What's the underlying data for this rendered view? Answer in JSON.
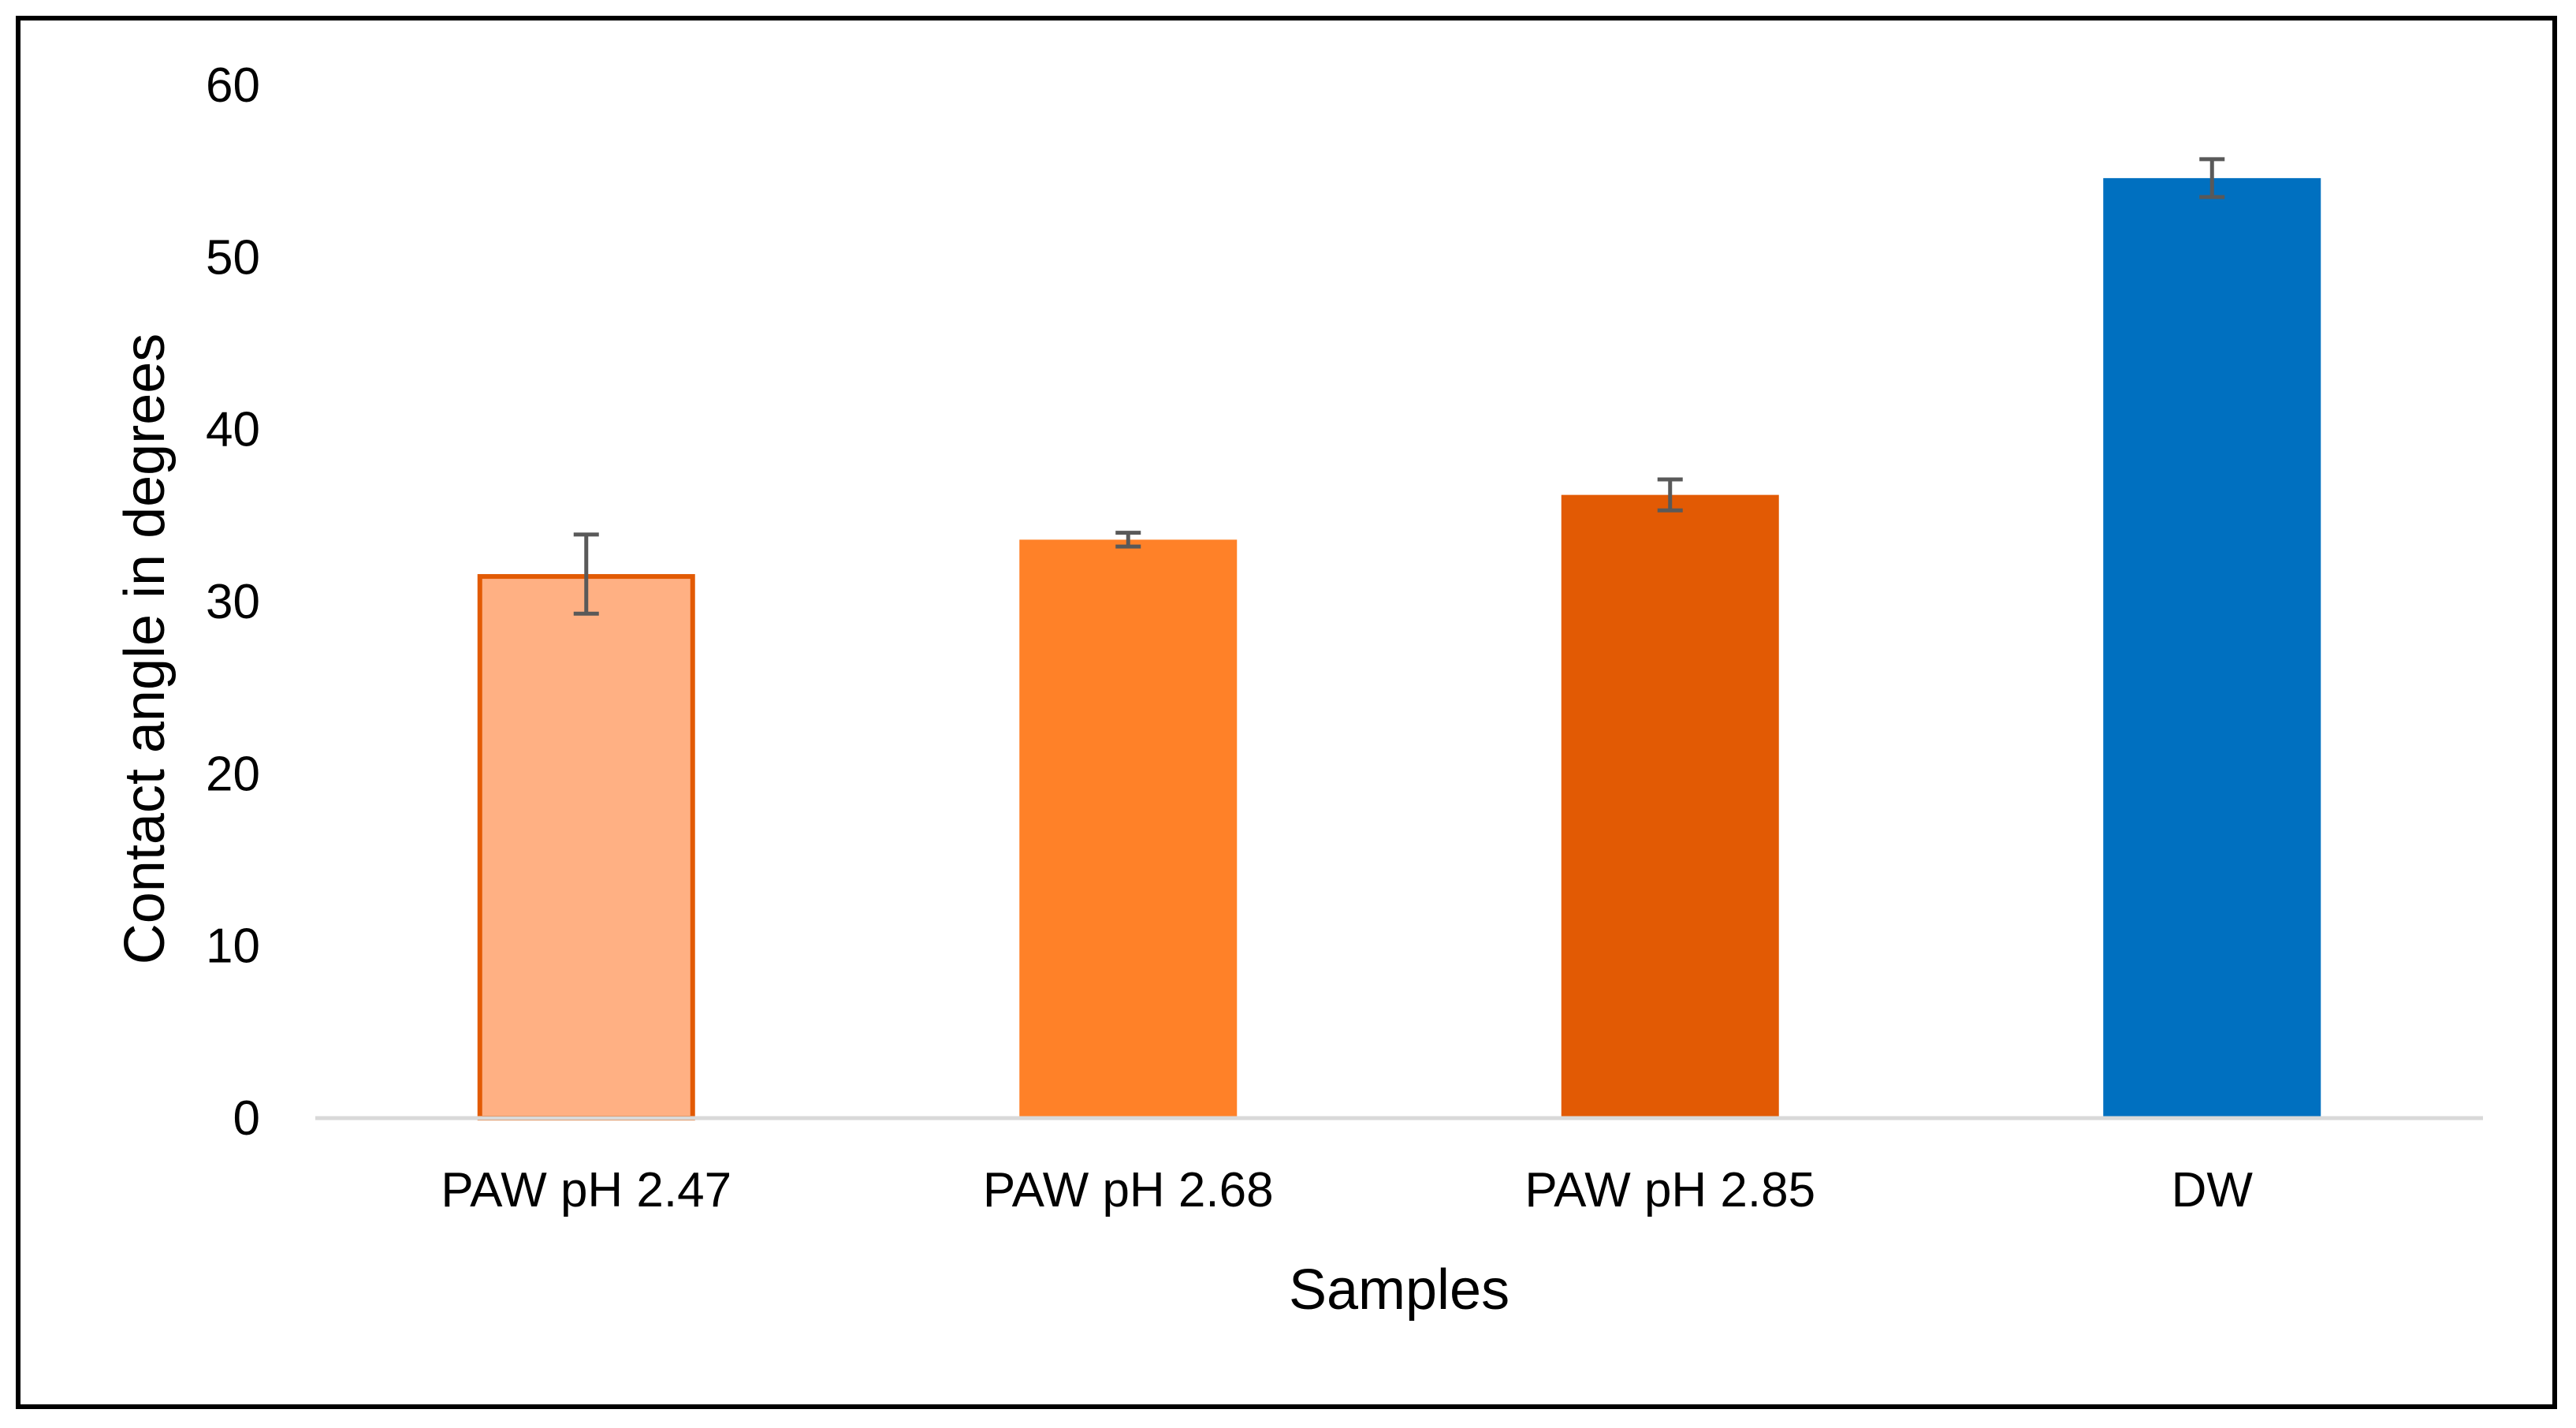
{
  "chart_data": {
    "type": "bar",
    "title": "",
    "xlabel": "Samples",
    "ylabel": "Contact angle in degrees",
    "ylim": [
      0,
      60
    ],
    "yticks": [
      0,
      10,
      20,
      30,
      40,
      50,
      60
    ],
    "ytick_labels": [
      "0",
      "10",
      "20",
      "30",
      "40",
      "50",
      "60"
    ],
    "grid": false,
    "categories": [
      "PAW pH 2.47",
      "PAW pH 2.68",
      "PAW pH 2.85",
      "DW"
    ],
    "values": [
      31.6,
      33.6,
      36.2,
      54.6
    ],
    "errors": [
      2.3,
      0.4,
      0.9,
      1.1
    ],
    "colors": [
      "#FFB083",
      "#FF8128",
      "#E25A04",
      "#0070C0"
    ],
    "edge_colors": [
      "#E25A04",
      "#FF8128",
      "#E25A04",
      "#0070C0"
    ],
    "error_bar_color": "#595959",
    "axis_color": "#D9D9D9"
  }
}
